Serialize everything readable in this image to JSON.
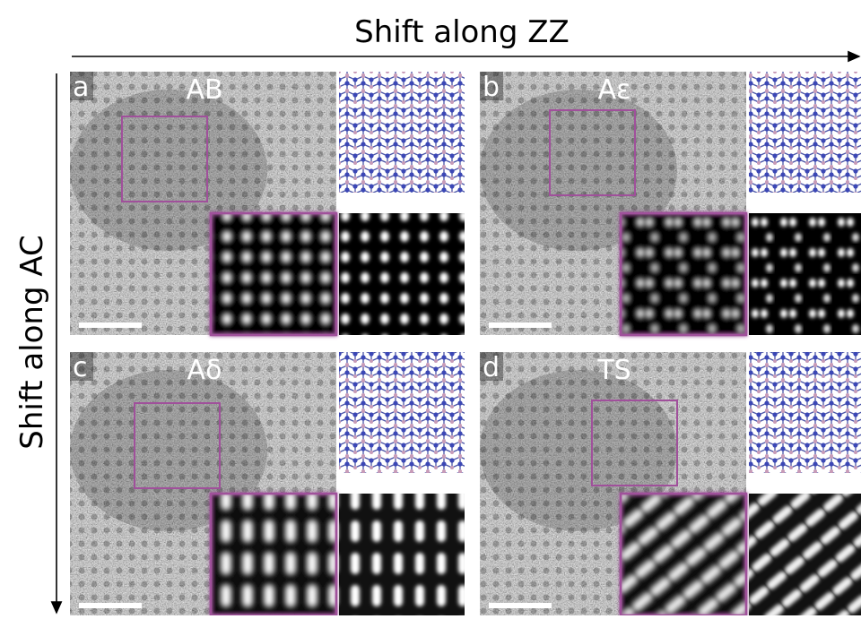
{
  "axis_labels": {
    "horizontal": "Shift along ZZ",
    "vertical": "Shift along AC"
  },
  "panels": [
    {
      "letter": "a",
      "label": "AB"
    },
    {
      "letter": "b",
      "label": "Aε"
    },
    {
      "letter": "c",
      "label": "Aδ"
    },
    {
      "letter": "d",
      "label": "TS"
    }
  ]
}
